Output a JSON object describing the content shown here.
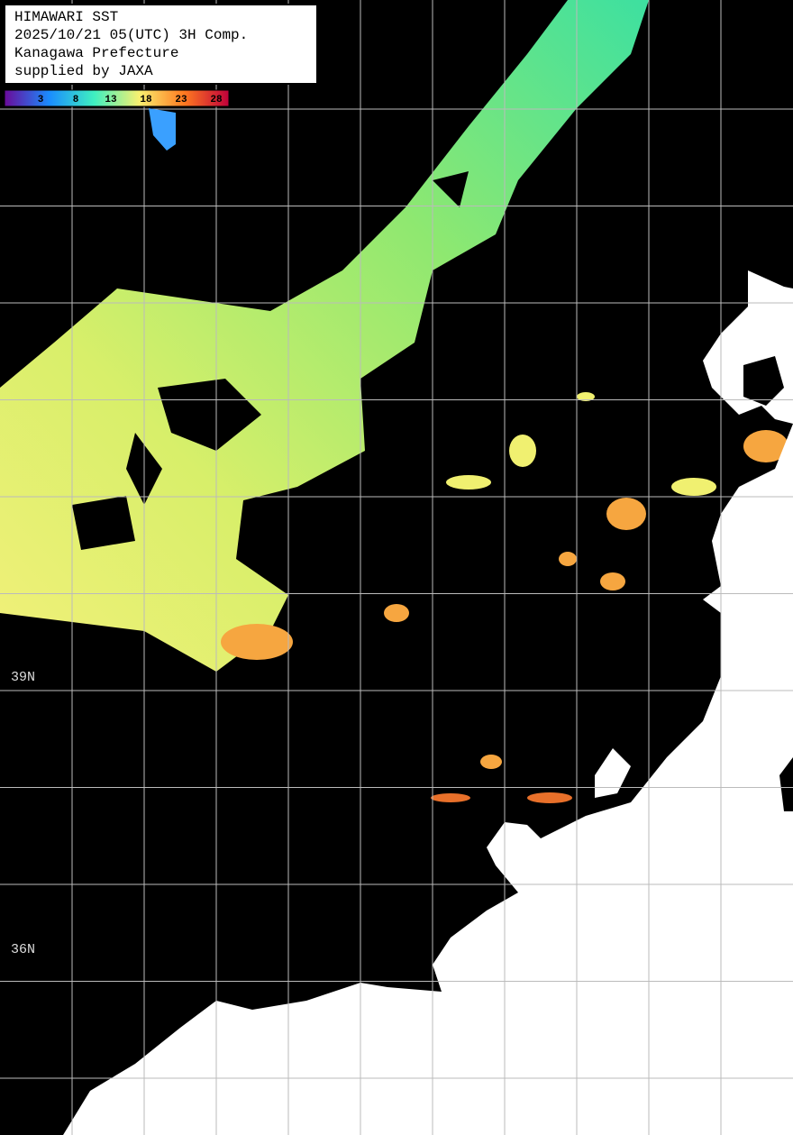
{
  "header": {
    "lines": [
      "HIMAWARI SST",
      "2025/10/21 05(UTC) 3H Comp.",
      "Kanagawa Prefecture",
      "supplied by JAXA"
    ]
  },
  "colorbar": {
    "labels": [
      "3",
      "8",
      "13",
      "18",
      "23",
      "28"
    ]
  },
  "latitude_labels": [
    "39N",
    "36N"
  ]
}
